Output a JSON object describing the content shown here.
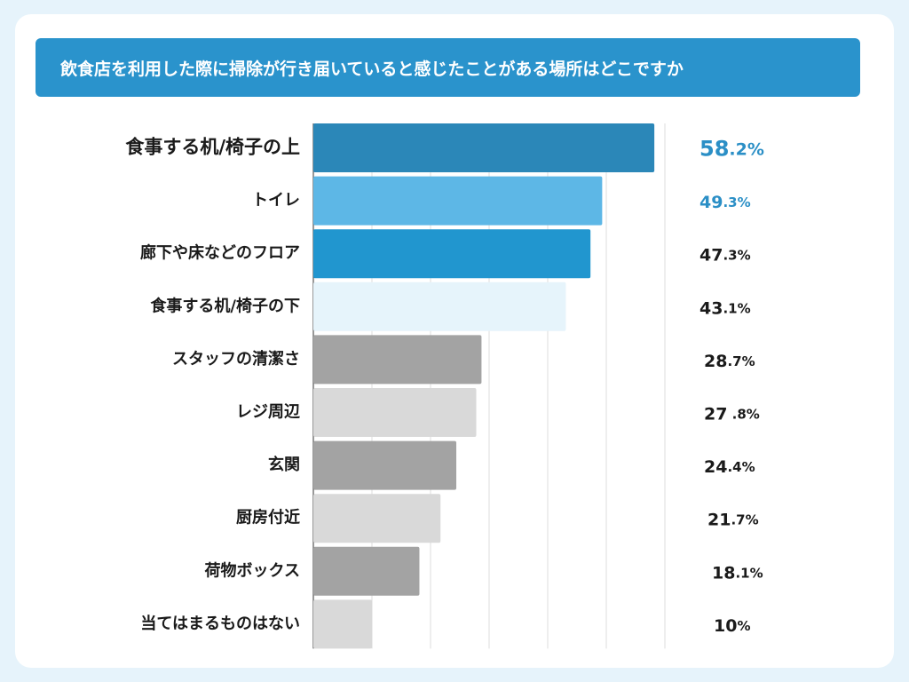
{
  "chart_data": {
    "type": "bar",
    "orientation": "horizontal",
    "title": "飲食店を利用した際に掃除が行き届いていると感じたことがある場所はどこですか",
    "xlabel": "",
    "ylabel": "",
    "xlim": [
      0,
      60
    ],
    "grid": true,
    "legend": "none",
    "categories": [
      "食事する机/椅子の上",
      "トイレ",
      "廊下や床などのフロア",
      "食事する机/椅子の下",
      "スタッフの清潔さ",
      "レジ周辺",
      "玄関",
      "厨房付近",
      "荷物ボックス",
      "当てはまるものはない"
    ],
    "values": [
      58.2,
      49.3,
      47.3,
      43.1,
      28.7,
      27.8,
      24.4,
      21.7,
      18.1,
      10
    ],
    "value_labels": [
      {
        "num": "58",
        "dec": ".2%"
      },
      {
        "num": "49",
        "dec": ".3%"
      },
      {
        "num": "47",
        "dec": ".3%"
      },
      {
        "num": "43",
        "dec": ".1%"
      },
      {
        "num": "28",
        "dec": ".7%"
      },
      {
        "num": "27",
        "dec": " .8%"
      },
      {
        "num": "24",
        "dec": ".4%"
      },
      {
        "num": "21",
        "dec": ".7%"
      },
      {
        "num": "18",
        "dec": ".1%"
      },
      {
        "num": "10",
        "dec": "%"
      }
    ],
    "bar_colors": [
      "#2b87b8",
      "#5db7e6",
      "#2196cf",
      "#e6f4fb",
      "#a3a3a3",
      "#d9d9d9",
      "#a3a3a3",
      "#d9d9d9",
      "#a3a3a3",
      "#d9d9d9"
    ],
    "label_colors": [
      "#2b8fc6",
      "#1a1a1a",
      "#1a1a1a",
      "#1a1a1a",
      "#1a1a1a",
      "#1a1a1a",
      "#1a1a1a",
      "#1a1a1a",
      "#1a1a1a",
      "#1a1a1a"
    ],
    "value_colors": [
      "#2b8fc6",
      "#2b8fc6",
      "#1a1a1a",
      "#1a1a1a",
      "#1a1a1a",
      "#1a1a1a",
      "#1a1a1a",
      "#1a1a1a",
      "#1a1a1a",
      "#1a1a1a"
    ]
  }
}
